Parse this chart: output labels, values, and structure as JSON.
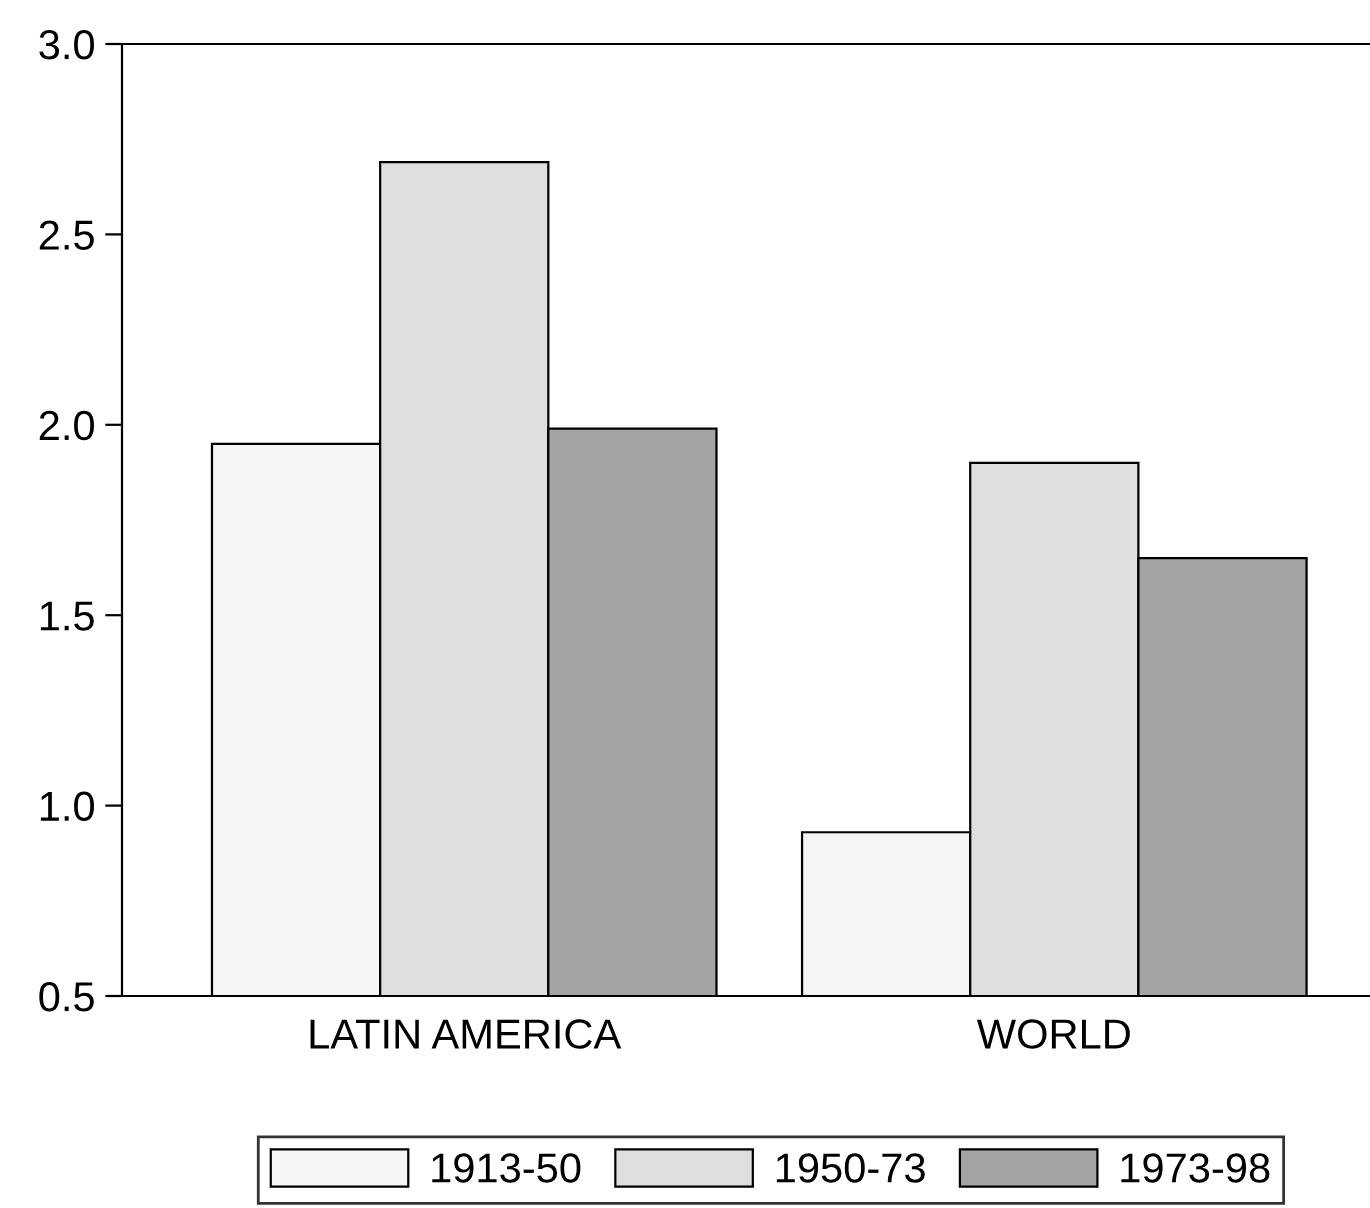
{
  "chart_data": {
    "type": "bar",
    "categories": [
      "LATIN AMERICA",
      "WORLD"
    ],
    "series": [
      {
        "name": "1913-50",
        "color": "#f5f5f5",
        "values": [
          1.95,
          0.93
        ]
      },
      {
        "name": "1950-73",
        "color": "#dedede",
        "values": [
          2.69,
          1.9
        ]
      },
      {
        "name": "1973-98",
        "color": "#a4a4a4",
        "values": [
          1.99,
          1.65
        ]
      }
    ],
    "ylim": [
      0.5,
      3.0
    ],
    "yticks": [
      {
        "value": 0.5,
        "label": "0.5"
      },
      {
        "value": 1.0,
        "label": "1.0"
      },
      {
        "value": 1.5,
        "label": "1.5"
      },
      {
        "value": 2.0,
        "label": "2.0"
      },
      {
        "value": 2.5,
        "label": "2.5"
      },
      {
        "value": 3.0,
        "label": "3.0"
      }
    ],
    "grid": false,
    "legend": "bottom"
  }
}
